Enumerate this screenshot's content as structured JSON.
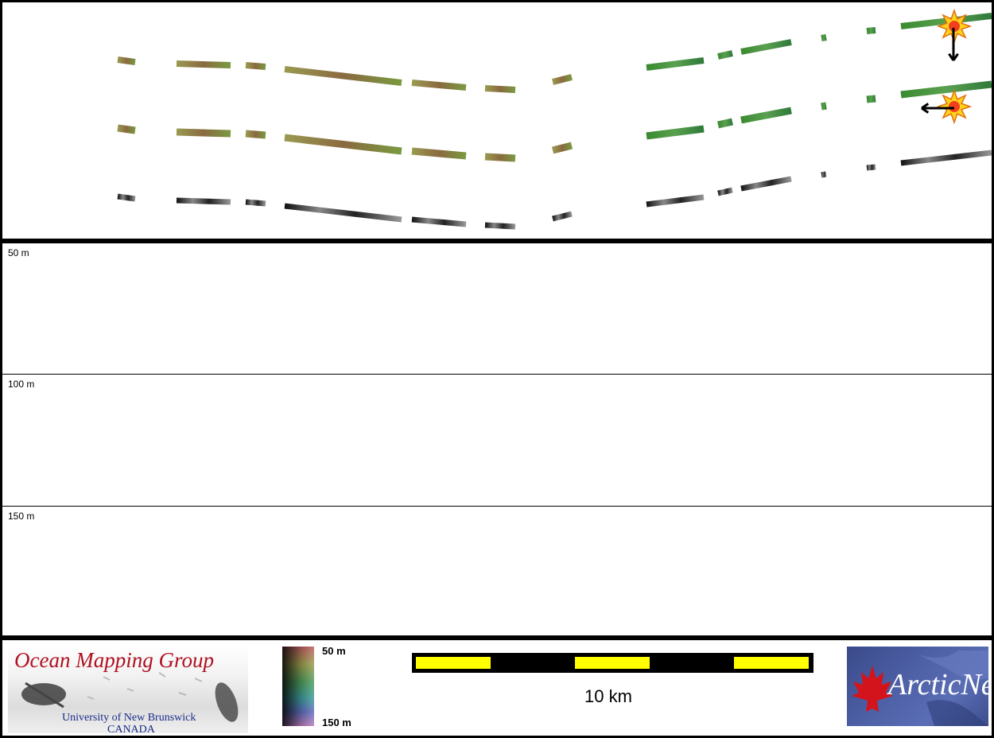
{
  "map": {
    "markers": [
      {
        "name": "sun-marker-1",
        "direction": "down"
      },
      {
        "name": "sun-marker-2",
        "direction": "left"
      }
    ],
    "swath_colors": {
      "colored_west": "#8a8a40",
      "colored_east": "#3a8a3a",
      "grayscale": "#222222"
    }
  },
  "profile": {
    "depth_labels": [
      "50 m",
      "100 m",
      "150 m"
    ]
  },
  "footer": {
    "omg_logo": {
      "title": "Ocean Mapping Group",
      "subtitle_1": "University of New Brunswick",
      "subtitle_2": "CANADA"
    },
    "colorbar": {
      "top_label": "50 m",
      "bottom_label": "150 m"
    },
    "scalebar": {
      "label": "10 km"
    },
    "arcticnet_logo": {
      "text": "ArcticNet",
      "leaf_color": "#d4141c"
    }
  }
}
